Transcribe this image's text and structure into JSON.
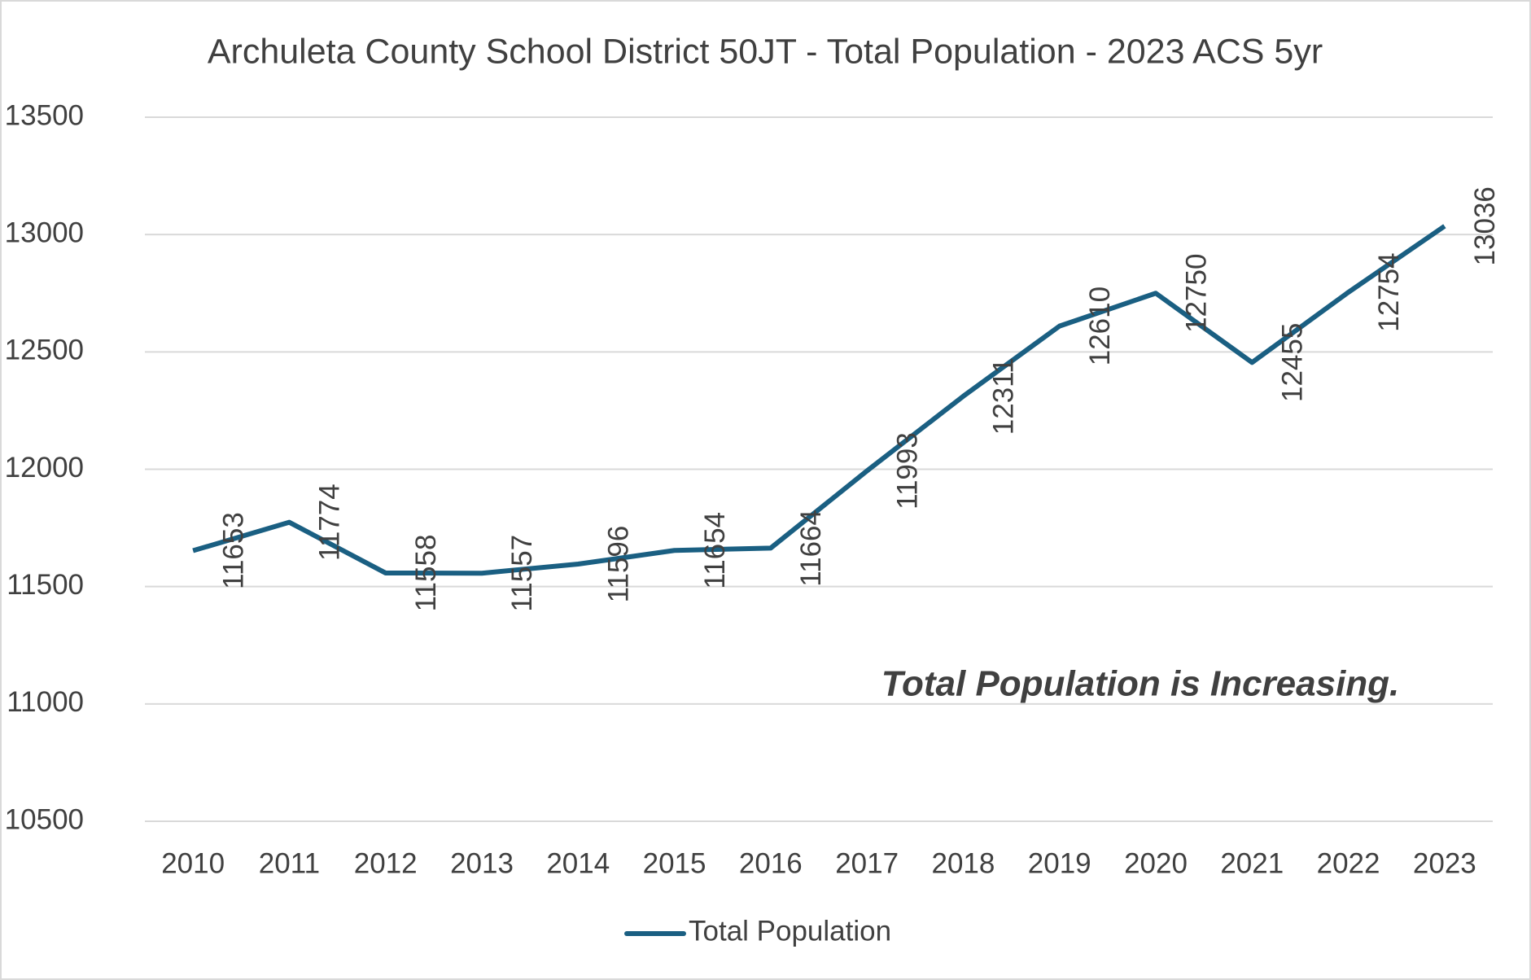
{
  "chart_data": {
    "type": "line",
    "title": "Archuleta County School District 50JT - Total Population - 2023 ACS 5yr",
    "categories": [
      "2010",
      "2011",
      "2012",
      "2013",
      "2014",
      "2015",
      "2016",
      "2017",
      "2018",
      "2019",
      "2020",
      "2021",
      "2022",
      "2023"
    ],
    "series": [
      {
        "name": "Total Population",
        "color": "#1a5f82",
        "values": [
          11653,
          11774,
          11558,
          11557,
          11596,
          11654,
          11664,
          11993,
          12311,
          12610,
          12750,
          12455,
          12754,
          13036
        ]
      }
    ],
    "ylim": [
      10500,
      13500
    ],
    "yticks": [
      10500,
      11000,
      11500,
      12000,
      12500,
      13000,
      13500
    ],
    "grid": true,
    "legend": "bottom",
    "annotation": "Total Population is Increasing.",
    "annotation_color": "#0070c0"
  }
}
